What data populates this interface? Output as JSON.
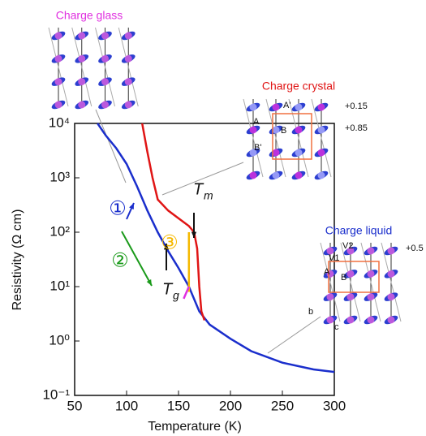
{
  "chart_data": {
    "type": "line",
    "x_label": "Temperature (K)",
    "y_label": "Resistivity (Ω cm)",
    "xlim": [
      50,
      300
    ],
    "xticks": [
      50,
      100,
      150,
      200,
      250,
      300
    ],
    "ylim": [
      0.1,
      10000
    ],
    "yscale": "log",
    "yticks": [
      {
        "value": 0.1,
        "label": "10⁻¹"
      },
      {
        "value": 1,
        "label": "10⁰"
      },
      {
        "value": 10,
        "label": "10¹"
      },
      {
        "value": 100,
        "label": "10²"
      },
      {
        "value": 1000,
        "label": "10³"
      },
      {
        "value": 10000,
        "label": "10⁴"
      }
    ],
    "series": [
      {
        "color": "#1a2ecc",
        "x": [
          72,
          80,
          90,
          100,
          110,
          120,
          130,
          140,
          150,
          160,
          170,
          180,
          200,
          220,
          250,
          280,
          300
        ],
        "values": [
          10000,
          6000,
          3500,
          1800,
          700,
          250,
          100,
          45,
          22,
          10,
          3.5,
          2,
          1.1,
          0.65,
          0.4,
          0.3,
          0.27
        ]
      },
      {
        "color": "#e01515",
        "x": [
          115,
          120,
          125,
          130,
          140,
          150,
          160,
          165,
          168,
          170,
          172,
          175
        ],
        "values": [
          10000,
          3000,
          1000,
          400,
          250,
          180,
          130,
          100,
          50,
          10,
          3.5,
          2.4
        ]
      },
      {
        "color": "#f5b800",
        "x": [
          160,
          160
        ],
        "values": [
          8,
          100
        ]
      },
      {
        "color": "#e030e0",
        "x": [
          155,
          160
        ],
        "values": [
          6,
          10
        ]
      }
    ],
    "annotations": [
      {
        "text": "①",
        "color": "#1a2ecc"
      },
      {
        "text": "②",
        "color": "#1a9a1a"
      },
      {
        "text": "③",
        "color": "#f5b800"
      },
      {
        "main": "T",
        "sub": "m",
        "color": "#111111"
      },
      {
        "main": "T",
        "sub": "g",
        "color": "#111111"
      }
    ],
    "insets": [
      {
        "title": "Charge glass",
        "color": "#e030e0",
        "labels": []
      },
      {
        "title": "Charge crystal",
        "color": "#e01515",
        "labels": [
          "+0.15",
          "+0.85",
          "A'",
          "A",
          "B",
          "B'"
        ]
      },
      {
        "title": "Charge liquid",
        "color": "#1a2ecc",
        "labels": [
          "+0.5",
          "V1",
          "V2",
          "A",
          "B",
          "b",
          "c"
        ]
      }
    ]
  }
}
